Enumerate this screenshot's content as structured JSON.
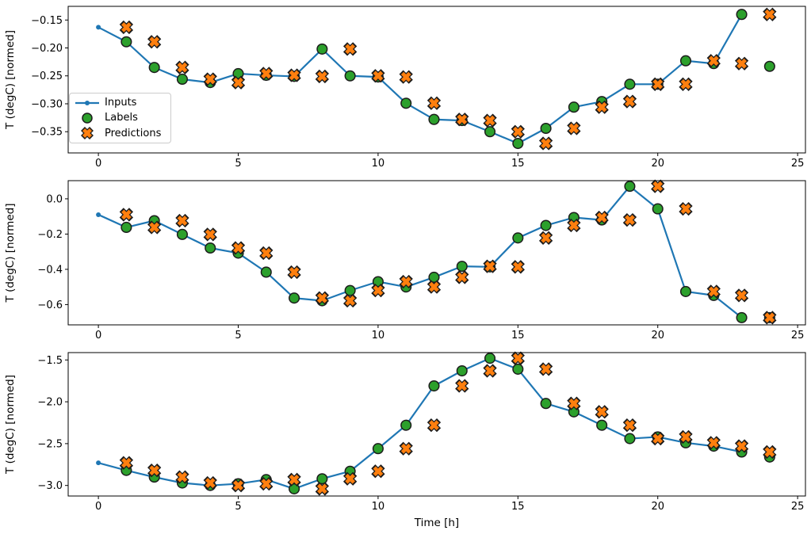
{
  "figure": {
    "background": "#ffffff"
  },
  "colors": {
    "inputs_line": "#1f77b4",
    "labels_fill": "#2ca02c",
    "predictions_fill": "#ff7f0e",
    "marker_edge": "#1c1c1c",
    "axis": "#000000",
    "tick_text": "#000000",
    "legend_border": "#cccccc"
  },
  "legend": {
    "position": "upper-left",
    "entries": [
      "Inputs",
      "Labels",
      "Predictions"
    ]
  },
  "xlabel": "Time [h]",
  "ylabel": "T (degC) [normed]",
  "chart_data": [
    {
      "type": "line+scatter",
      "ylabel": "T (degC) [normed]",
      "xlim": [
        -1.08,
        25.28
      ],
      "ylim": [
        -0.388,
        -0.1255
      ],
      "xticks": [
        0,
        5,
        10,
        15,
        20,
        25
      ],
      "yticks": [
        -0.15,
        -0.2,
        -0.25,
        -0.3,
        -0.35
      ],
      "ytick_decimals": 2,
      "grid": false,
      "series": [
        {
          "name": "Inputs",
          "type": "line",
          "marker": "dot",
          "x": [
            0,
            1,
            2,
            3,
            4,
            5,
            6,
            7,
            8,
            9,
            10,
            11,
            12,
            13,
            14,
            15,
            16,
            17,
            18,
            19,
            20,
            21,
            22,
            23
          ],
          "y": [
            -0.163,
            -0.189,
            -0.235,
            -0.256,
            -0.262,
            -0.246,
            -0.249,
            -0.251,
            -0.202,
            -0.25,
            -0.252,
            -0.299,
            -0.328,
            -0.33,
            -0.35,
            -0.371,
            -0.344,
            -0.306,
            -0.296,
            -0.265,
            -0.265,
            -0.223,
            -0.228,
            -0.14
          ]
        },
        {
          "name": "Labels",
          "type": "scatter",
          "marker": "circle",
          "x": [
            1,
            2,
            3,
            4,
            5,
            6,
            7,
            8,
            9,
            10,
            11,
            12,
            13,
            14,
            15,
            16,
            17,
            18,
            19,
            20,
            21,
            22,
            23,
            24
          ],
          "y": [
            -0.189,
            -0.235,
            -0.256,
            -0.262,
            -0.246,
            -0.249,
            -0.251,
            -0.202,
            -0.25,
            -0.252,
            -0.299,
            -0.328,
            -0.33,
            -0.35,
            -0.371,
            -0.344,
            -0.306,
            -0.296,
            -0.265,
            -0.265,
            -0.223,
            -0.228,
            -0.14,
            -0.233
          ]
        },
        {
          "name": "Predictions",
          "type": "scatter",
          "marker": "x",
          "x": [
            1,
            2,
            3,
            4,
            5,
            6,
            7,
            8,
            9,
            10,
            11,
            12,
            13,
            14,
            15,
            16,
            17,
            18,
            19,
            20,
            21,
            22,
            23,
            24
          ],
          "y": [
            -0.163,
            -0.189,
            -0.235,
            -0.256,
            -0.262,
            -0.246,
            -0.249,
            -0.251,
            -0.202,
            -0.25,
            -0.252,
            -0.299,
            -0.328,
            -0.33,
            -0.35,
            -0.371,
            -0.344,
            -0.306,
            -0.296,
            -0.265,
            -0.265,
            -0.223,
            -0.228,
            -0.14
          ]
        }
      ]
    },
    {
      "type": "line+scatter",
      "ylabel": "T (degC) [normed]",
      "xlim": [
        -1.08,
        25.28
      ],
      "ylim": [
        -0.715,
        0.103
      ],
      "xticks": [
        0,
        5,
        10,
        15,
        20,
        25
      ],
      "yticks": [
        0.0,
        -0.2,
        -0.4,
        -0.6
      ],
      "ytick_decimals": 1,
      "grid": false,
      "series": [
        {
          "name": "Inputs",
          "type": "line",
          "marker": "dot",
          "x": [
            0,
            1,
            2,
            3,
            4,
            5,
            6,
            7,
            8,
            9,
            10,
            11,
            12,
            13,
            14,
            15,
            16,
            17,
            18,
            19,
            20,
            21,
            22,
            23
          ],
          "y": [
            -0.09,
            -0.162,
            -0.124,
            -0.202,
            -0.279,
            -0.308,
            -0.416,
            -0.563,
            -0.578,
            -0.52,
            -0.47,
            -0.5,
            -0.445,
            -0.383,
            -0.386,
            -0.222,
            -0.151,
            -0.106,
            -0.12,
            0.071,
            -0.057,
            -0.526,
            -0.548,
            -0.674
          ]
        },
        {
          "name": "Labels",
          "type": "scatter",
          "marker": "circle",
          "x": [
            1,
            2,
            3,
            4,
            5,
            6,
            7,
            8,
            9,
            10,
            11,
            12,
            13,
            14,
            15,
            16,
            17,
            18,
            19,
            20,
            21,
            22,
            23,
            24
          ],
          "y": [
            -0.162,
            -0.124,
            -0.202,
            -0.279,
            -0.308,
            -0.416,
            -0.563,
            -0.578,
            -0.52,
            -0.47,
            -0.5,
            -0.445,
            -0.383,
            -0.386,
            -0.222,
            -0.151,
            -0.106,
            -0.12,
            0.071,
            -0.057,
            -0.526,
            -0.548,
            -0.674,
            -0.674
          ]
        },
        {
          "name": "Predictions",
          "type": "scatter",
          "marker": "x",
          "x": [
            1,
            2,
            3,
            4,
            5,
            6,
            7,
            8,
            9,
            10,
            11,
            12,
            13,
            14,
            15,
            16,
            17,
            18,
            19,
            20,
            21,
            22,
            23,
            24
          ],
          "y": [
            -0.09,
            -0.162,
            -0.124,
            -0.202,
            -0.279,
            -0.308,
            -0.416,
            -0.563,
            -0.578,
            -0.52,
            -0.47,
            -0.5,
            -0.445,
            -0.383,
            -0.386,
            -0.222,
            -0.151,
            -0.106,
            -0.12,
            0.071,
            -0.057,
            -0.526,
            -0.548,
            -0.674
          ]
        }
      ]
    },
    {
      "type": "line+scatter",
      "ylabel": "T (degC) [normed]",
      "xlabel": "Time [h]",
      "xlim": [
        -1.08,
        25.28
      ],
      "ylim": [
        -3.126,
        -1.412
      ],
      "xticks": [
        0,
        5,
        10,
        15,
        20,
        25
      ],
      "yticks": [
        -1.5,
        -2.0,
        -2.5,
        -3.0
      ],
      "ytick_decimals": 1,
      "grid": false,
      "series": [
        {
          "name": "Inputs",
          "type": "line",
          "marker": "dot",
          "x": [
            0,
            1,
            2,
            3,
            4,
            5,
            6,
            7,
            8,
            9,
            10,
            11,
            12,
            13,
            14,
            15,
            16,
            17,
            18,
            19,
            20,
            21,
            22,
            23
          ],
          "y": [
            -2.73,
            -2.82,
            -2.9,
            -2.97,
            -3.0,
            -2.98,
            -2.93,
            -3.04,
            -2.92,
            -2.83,
            -2.56,
            -2.28,
            -1.81,
            -1.63,
            -1.48,
            -1.61,
            -2.02,
            -2.12,
            -2.28,
            -2.44,
            -2.42,
            -2.49,
            -2.53,
            -2.6
          ]
        },
        {
          "name": "Labels",
          "type": "scatter",
          "marker": "circle",
          "x": [
            1,
            2,
            3,
            4,
            5,
            6,
            7,
            8,
            9,
            10,
            11,
            12,
            13,
            14,
            15,
            16,
            17,
            18,
            19,
            20,
            21,
            22,
            23,
            24
          ],
          "y": [
            -2.82,
            -2.9,
            -2.97,
            -3.0,
            -2.98,
            -2.93,
            -3.04,
            -2.92,
            -2.83,
            -2.56,
            -2.28,
            -1.81,
            -1.63,
            -1.48,
            -1.61,
            -2.02,
            -2.12,
            -2.28,
            -2.44,
            -2.42,
            -2.49,
            -2.53,
            -2.6,
            -2.66
          ]
        },
        {
          "name": "Predictions",
          "type": "scatter",
          "marker": "x",
          "x": [
            1,
            2,
            3,
            4,
            5,
            6,
            7,
            8,
            9,
            10,
            11,
            12,
            13,
            14,
            15,
            16,
            17,
            18,
            19,
            20,
            21,
            22,
            23,
            24
          ],
          "y": [
            -2.73,
            -2.82,
            -2.9,
            -2.97,
            -3.0,
            -2.98,
            -2.93,
            -3.04,
            -2.92,
            -2.83,
            -2.56,
            -2.28,
            -1.81,
            -1.63,
            -1.48,
            -1.61,
            -2.02,
            -2.12,
            -2.28,
            -2.44,
            -2.42,
            -2.49,
            -2.53,
            -2.6
          ]
        }
      ]
    }
  ]
}
